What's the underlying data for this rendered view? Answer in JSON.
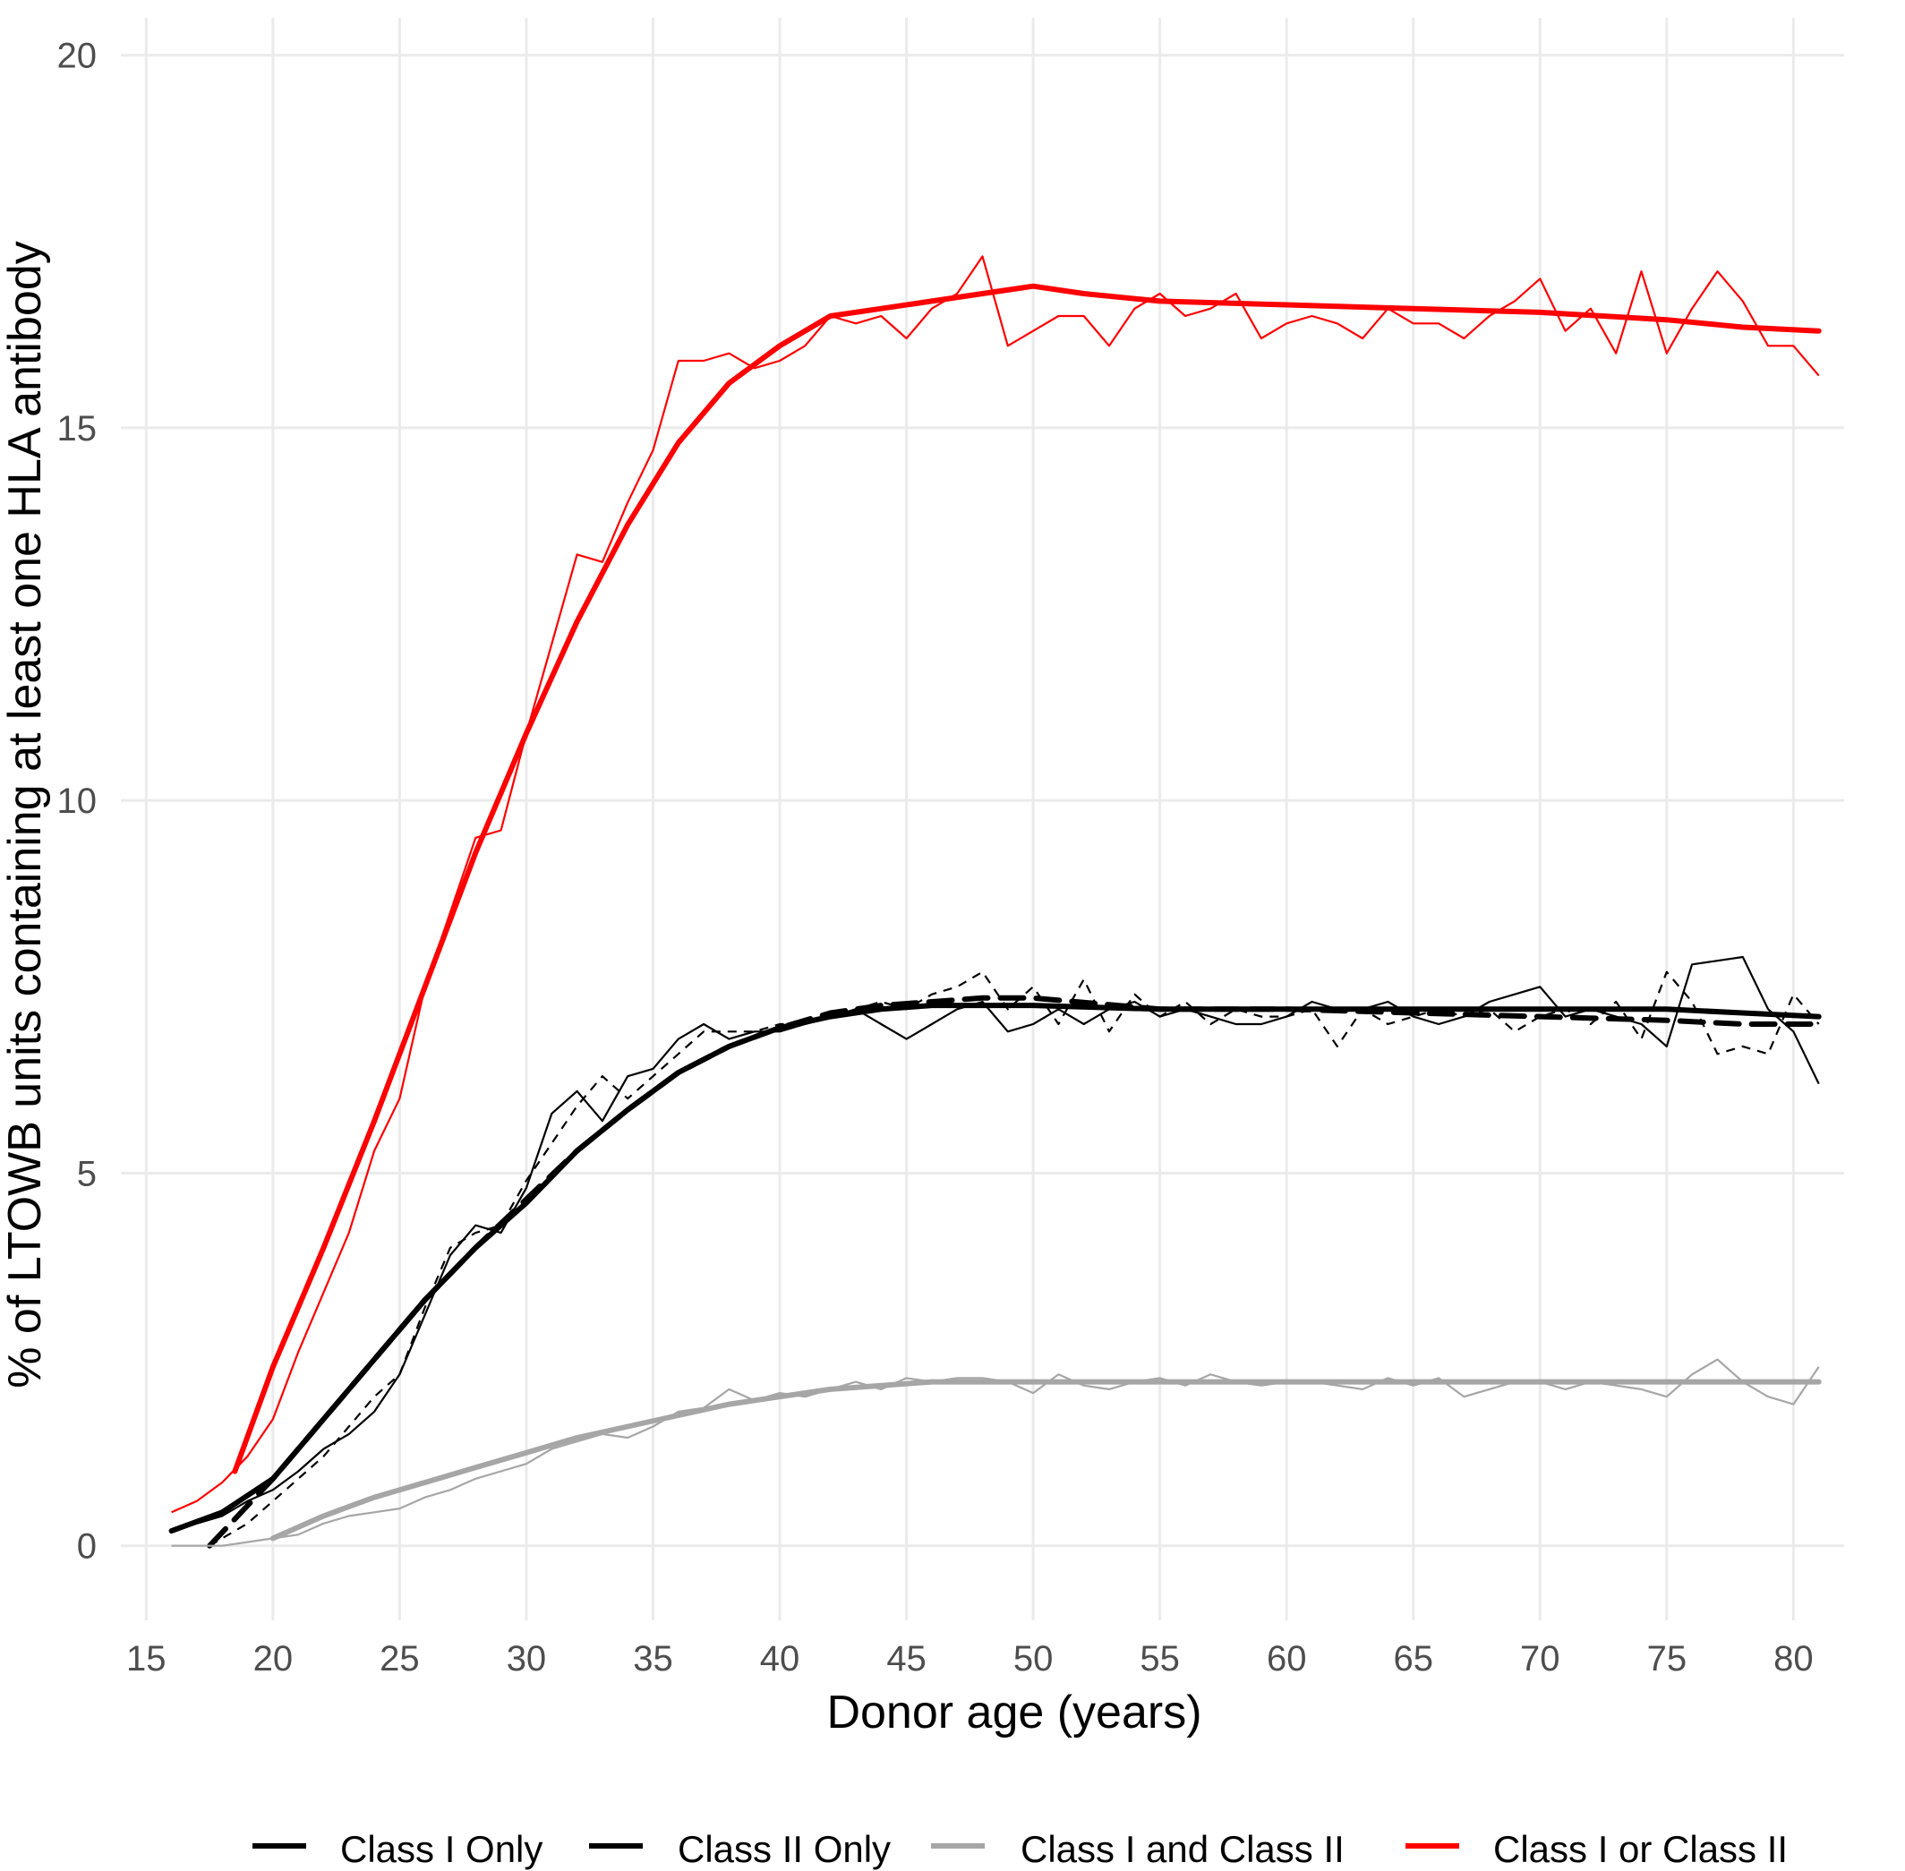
{
  "chart_data": {
    "type": "line",
    "title": "",
    "xlabel": "Donor age (years)",
    "ylabel": "% of LTOWB units containing at least one HLA antibody",
    "xlim": [
      14,
      82
    ],
    "ylim": [
      -1,
      20.5
    ],
    "xticks": [
      15,
      20,
      25,
      30,
      35,
      40,
      45,
      50,
      55,
      60,
      65,
      70,
      75,
      80
    ],
    "yticks": [
      0,
      5,
      10,
      15,
      20
    ],
    "grid": true,
    "legend_position": "bottom",
    "series": [
      {
        "name": "Class I Only",
        "color": "#000000",
        "dash": "solid",
        "smooth": {
          "x": [
            16,
            18,
            20,
            22,
            24,
            26,
            28,
            30,
            32,
            34,
            36,
            38,
            40,
            42,
            44,
            46,
            48,
            50,
            55,
            60,
            65,
            70,
            75,
            78,
            81
          ],
          "y": [
            0.2,
            0.45,
            0.9,
            1.7,
            2.5,
            3.3,
            4.0,
            4.6,
            5.3,
            5.85,
            6.35,
            6.7,
            6.95,
            7.1,
            7.2,
            7.25,
            7.25,
            7.25,
            7.2,
            7.2,
            7.2,
            7.2,
            7.2,
            7.15,
            7.1
          ]
        },
        "raw": {
          "x": [
            16,
            17,
            18,
            19,
            20,
            21,
            22,
            23,
            24,
            25,
            26,
            27,
            28,
            29,
            30,
            31,
            32,
            33,
            34,
            35,
            36,
            37,
            38,
            39,
            40,
            41,
            42,
            43,
            44,
            45,
            46,
            47,
            48,
            49,
            50,
            51,
            52,
            53,
            54,
            55,
            56,
            57,
            58,
            59,
            60,
            61,
            62,
            63,
            64,
            65,
            66,
            67,
            68,
            69,
            70,
            71,
            72,
            73,
            74,
            75,
            76,
            77,
            78,
            79,
            80,
            81
          ],
          "y": [
            0.2,
            0.3,
            0.4,
            0.6,
            0.75,
            1.0,
            1.3,
            1.5,
            1.8,
            2.3,
            3.1,
            3.9,
            4.3,
            4.2,
            4.8,
            5.8,
            6.1,
            5.7,
            6.3,
            6.4,
            6.8,
            7.0,
            6.8,
            6.9,
            6.9,
            7.0,
            7.1,
            7.2,
            7.0,
            6.8,
            7.0,
            7.2,
            7.3,
            6.9,
            7.0,
            7.2,
            7.0,
            7.2,
            7.3,
            7.1,
            7.2,
            7.1,
            7.0,
            7.0,
            7.1,
            7.3,
            7.2,
            7.2,
            7.3,
            7.1,
            7.0,
            7.1,
            7.3,
            7.4,
            7.5,
            7.1,
            7.2,
            7.1,
            7.0,
            6.7,
            7.8,
            7.85,
            7.9,
            7.2,
            6.9,
            6.2
          ]
        }
      },
      {
        "name": "Class II Only",
        "color": "#000000",
        "dash": "dashed",
        "smooth": {
          "x": [
            17.5,
            20,
            22,
            24,
            26,
            28,
            30,
            32,
            34,
            36,
            38,
            40,
            42,
            44,
            46,
            48,
            50,
            55,
            60,
            65,
            70,
            75,
            78,
            81
          ],
          "y": [
            0.0,
            0.9,
            1.7,
            2.5,
            3.3,
            4.0,
            4.65,
            5.3,
            5.85,
            6.35,
            6.7,
            6.95,
            7.15,
            7.25,
            7.3,
            7.35,
            7.35,
            7.2,
            7.2,
            7.15,
            7.1,
            7.05,
            7.0,
            7.0
          ]
        },
        "raw": {
          "x": [
            17.5,
            18,
            19,
            20,
            21,
            22,
            23,
            24,
            25,
            26,
            27,
            28,
            29,
            30,
            31,
            32,
            33,
            34,
            35,
            36,
            37,
            38,
            39,
            40,
            41,
            42,
            43,
            44,
            45,
            46,
            47,
            48,
            49,
            50,
            51,
            52,
            53,
            54,
            55,
            56,
            57,
            58,
            59,
            60,
            61,
            62,
            63,
            64,
            65,
            66,
            67,
            68,
            69,
            70,
            71,
            72,
            73,
            74,
            75,
            76,
            77,
            78,
            79,
            80,
            81
          ],
          "y": [
            0.0,
            0.1,
            0.3,
            0.6,
            0.9,
            1.2,
            1.6,
            2.0,
            2.3,
            3.2,
            4.0,
            4.2,
            4.3,
            4.9,
            5.4,
            5.9,
            6.3,
            6.0,
            6.3,
            6.6,
            6.9,
            6.9,
            6.9,
            7.0,
            7.0,
            7.1,
            7.2,
            7.3,
            7.2,
            7.4,
            7.5,
            7.7,
            7.2,
            7.5,
            7.0,
            7.6,
            6.9,
            7.4,
            7.1,
            7.3,
            7.0,
            7.2,
            7.1,
            7.1,
            7.2,
            6.7,
            7.2,
            7.0,
            7.1,
            7.2,
            7.1,
            7.2,
            6.9,
            7.1,
            7.2,
            7.0,
            7.3,
            6.8,
            7.7,
            7.3,
            6.6,
            6.7,
            6.6,
            7.4,
            7.0
          ]
        }
      },
      {
        "name": "Class I and Class II",
        "color": "#a6a6a6",
        "dash": "solid",
        "smooth": {
          "x": [
            20,
            22,
            24,
            26,
            28,
            30,
            32,
            34,
            36,
            38,
            40,
            42,
            44,
            46,
            48,
            50,
            55,
            60,
            65,
            70,
            75,
            78,
            81
          ],
          "y": [
            0.1,
            0.4,
            0.65,
            0.85,
            1.05,
            1.25,
            1.45,
            1.6,
            1.75,
            1.9,
            2.0,
            2.1,
            2.15,
            2.2,
            2.2,
            2.2,
            2.2,
            2.2,
            2.2,
            2.2,
            2.2,
            2.2,
            2.2
          ]
        },
        "raw": {
          "x": [
            16,
            17,
            18,
            19,
            20,
            21,
            22,
            23,
            24,
            25,
            26,
            27,
            28,
            29,
            30,
            31,
            32,
            33,
            34,
            35,
            36,
            37,
            38,
            39,
            40,
            41,
            42,
            43,
            44,
            45,
            46,
            47,
            48,
            49,
            50,
            51,
            52,
            53,
            54,
            55,
            56,
            57,
            58,
            59,
            60,
            61,
            62,
            63,
            64,
            65,
            66,
            67,
            68,
            69,
            70,
            71,
            72,
            73,
            74,
            75,
            76,
            77,
            78,
            79,
            80,
            81
          ],
          "y": [
            0.0,
            0.0,
            0.0,
            0.05,
            0.1,
            0.15,
            0.3,
            0.4,
            0.45,
            0.5,
            0.65,
            0.75,
            0.9,
            1.0,
            1.1,
            1.3,
            1.4,
            1.5,
            1.45,
            1.6,
            1.8,
            1.85,
            2.1,
            1.95,
            2.05,
            2.0,
            2.1,
            2.2,
            2.1,
            2.25,
            2.2,
            2.25,
            2.25,
            2.2,
            2.05,
            2.3,
            2.15,
            2.1,
            2.2,
            2.25,
            2.15,
            2.3,
            2.2,
            2.15,
            2.2,
            2.2,
            2.15,
            2.1,
            2.25,
            2.15,
            2.25,
            2.0,
            2.1,
            2.2,
            2.2,
            2.1,
            2.2,
            2.15,
            2.1,
            2.0,
            2.3,
            2.5,
            2.2,
            2.0,
            1.9,
            2.4
          ]
        }
      },
      {
        "name": "Class I or Class II",
        "color": "#ff0000",
        "dash": "solid",
        "smooth": {
          "x": [
            18.5,
            20,
            22,
            24,
            26,
            28,
            30,
            32,
            34,
            36,
            38,
            40,
            42,
            44,
            46,
            48,
            50,
            52,
            55,
            60,
            65,
            70,
            75,
            78,
            81
          ],
          "y": [
            1.0,
            2.4,
            4.0,
            5.7,
            7.5,
            9.3,
            10.9,
            12.4,
            13.7,
            14.8,
            15.6,
            16.1,
            16.5,
            16.6,
            16.7,
            16.8,
            16.9,
            16.8,
            16.7,
            16.65,
            16.6,
            16.55,
            16.45,
            16.35,
            16.3
          ]
        },
        "raw": {
          "x": [
            16,
            17,
            18,
            19,
            20,
            21,
            22,
            23,
            24,
            25,
            26,
            27,
            28,
            29,
            30,
            31,
            32,
            33,
            34,
            35,
            36,
            37,
            38,
            39,
            40,
            41,
            42,
            43,
            44,
            45,
            46,
            47,
            48,
            49,
            50,
            51,
            52,
            53,
            54,
            55,
            56,
            57,
            58,
            59,
            60,
            61,
            62,
            63,
            64,
            65,
            66,
            67,
            68,
            69,
            70,
            71,
            72,
            73,
            74,
            75,
            76,
            77,
            78,
            79,
            80,
            81
          ],
          "y": [
            0.45,
            0.6,
            0.85,
            1.2,
            1.7,
            2.6,
            3.4,
            4.2,
            5.3,
            6.0,
            7.5,
            8.5,
            9.5,
            9.6,
            10.9,
            12.1,
            13.3,
            13.2,
            14.0,
            14.7,
            15.9,
            15.9,
            16.0,
            15.8,
            15.9,
            16.1,
            16.5,
            16.4,
            16.5,
            16.2,
            16.6,
            16.8,
            17.3,
            16.1,
            16.3,
            16.5,
            16.5,
            16.1,
            16.6,
            16.8,
            16.5,
            16.6,
            16.8,
            16.2,
            16.4,
            16.5,
            16.4,
            16.2,
            16.6,
            16.4,
            16.4,
            16.2,
            16.5,
            16.7,
            17.0,
            16.3,
            16.6,
            16.0,
            17.1,
            16.0,
            16.6,
            17.1,
            16.7,
            16.1,
            16.1,
            15.7
          ]
        }
      }
    ]
  }
}
